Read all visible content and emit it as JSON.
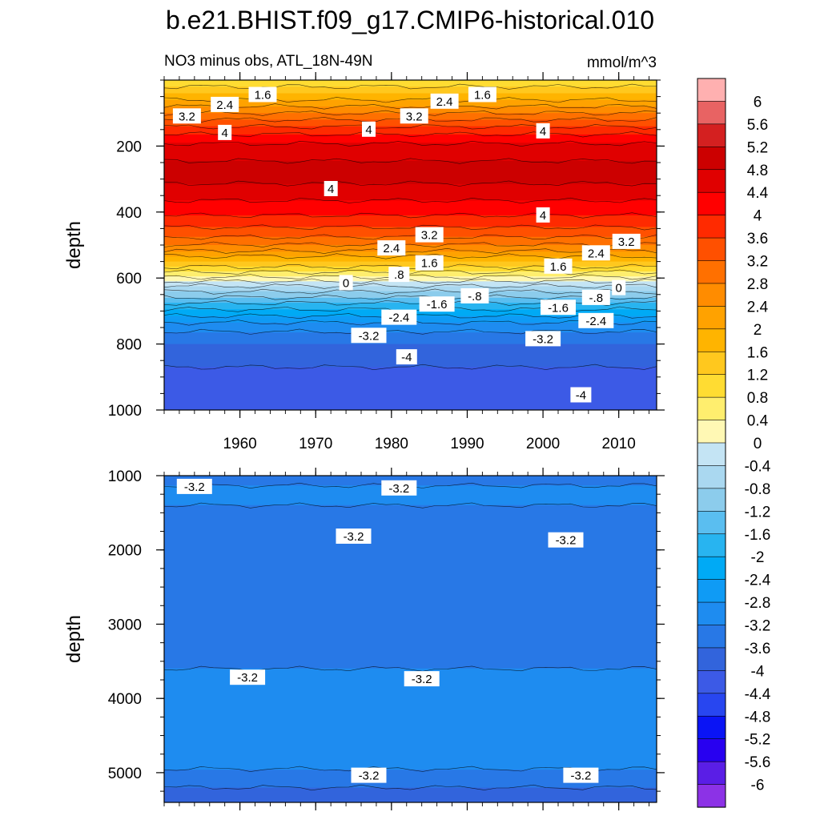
{
  "title": "b.e21.BHIST.f09_g17.CMIP6-historical.010",
  "chart_data": [
    {
      "type": "heatmap",
      "panel": "upper",
      "subtitle_left": "NO3 minus obs, ATL_18N-49N",
      "subtitle_right": "mmol/m^3",
      "ylabel": "depth",
      "xlim": [
        1950,
        2015
      ],
      "ylim": [
        0,
        1000
      ],
      "y_reversed": true,
      "x_ticks": [
        1960,
        1970,
        1980,
        1990,
        2000,
        2010
      ],
      "y_ticks": [
        200,
        400,
        600,
        800,
        1000
      ],
      "profile_depths": [
        0,
        40,
        90,
        130,
        170,
        200,
        260,
        300,
        340,
        390,
        430,
        470,
        510,
        550,
        590,
        620,
        650,
        680,
        710,
        740,
        770,
        800,
        840,
        900,
        1000
      ],
      "profile_values": [
        0.8,
        1.6,
        2.6,
        3.4,
        4.1,
        4.5,
        4.9,
        4.9,
        4.6,
        4.2,
        3.8,
        3.3,
        2.6,
        1.6,
        0.6,
        -0.3,
        -1.0,
        -1.7,
        -2.3,
        -2.9,
        -3.3,
        -3.6,
        -3.9,
        -4.1,
        -4.2
      ],
      "contour_labels": [
        {
          "text": "1.6",
          "x": 1963,
          "y": 45
        },
        {
          "text": "2.4",
          "x": 1958,
          "y": 75
        },
        {
          "text": "3.2",
          "x": 1953,
          "y": 110
        },
        {
          "text": "4",
          "x": 1958,
          "y": 160
        },
        {
          "text": "2.4",
          "x": 1987,
          "y": 65
        },
        {
          "text": "1.6",
          "x": 1992,
          "y": 45
        },
        {
          "text": "3.2",
          "x": 1983,
          "y": 110
        },
        {
          "text": "4",
          "x": 1977,
          "y": 150
        },
        {
          "text": "4",
          "x": 2000,
          "y": 155
        },
        {
          "text": "4",
          "x": 1972,
          "y": 330
        },
        {
          "text": "4",
          "x": 2000,
          "y": 410
        },
        {
          "text": "3.2",
          "x": 1985,
          "y": 470
        },
        {
          "text": "3.2",
          "x": 2011,
          "y": 490
        },
        {
          "text": "2.4",
          "x": 1980,
          "y": 510
        },
        {
          "text": "2.4",
          "x": 2007,
          "y": 525
        },
        {
          "text": "1.6",
          "x": 1985,
          "y": 555
        },
        {
          "text": "1.6",
          "x": 2002,
          "y": 565
        },
        {
          "text": ".8",
          "x": 1981,
          "y": 590
        },
        {
          "text": "0",
          "x": 1974,
          "y": 615
        },
        {
          "text": "0",
          "x": 2010,
          "y": 630
        },
        {
          "text": "-.8",
          "x": 1991,
          "y": 655
        },
        {
          "text": "-.8",
          "x": 2007,
          "y": 660
        },
        {
          "text": "-1.6",
          "x": 1986,
          "y": 680
        },
        {
          "text": "-1.6",
          "x": 2002,
          "y": 690
        },
        {
          "text": "-2.4",
          "x": 1981,
          "y": 720
        },
        {
          "text": "-2.4",
          "x": 2007,
          "y": 730
        },
        {
          "text": "-3.2",
          "x": 1977,
          "y": 775
        },
        {
          "text": "-3.2",
          "x": 2000,
          "y": 785
        },
        {
          "text": "-4",
          "x": 1982,
          "y": 840
        },
        {
          "text": "-4",
          "x": 2005,
          "y": 955
        }
      ]
    },
    {
      "type": "heatmap",
      "panel": "lower",
      "ylabel": "depth",
      "xlim": [
        1950,
        2015
      ],
      "ylim": [
        1000,
        5400
      ],
      "y_reversed": true,
      "y_ticks": [
        1000,
        2000,
        3000,
        4000,
        5000
      ],
      "profile_depths": [
        1000,
        1200,
        1600,
        2000,
        3300,
        3700,
        4900,
        5100,
        5400
      ],
      "profile_values": [
        -3.4,
        -3.1,
        -3.3,
        -3.5,
        -3.5,
        -3.1,
        -3.1,
        -3.5,
        -3.8
      ],
      "contour_labels": [
        {
          "text": "-3.2",
          "x": 1954,
          "y": 1150
        },
        {
          "text": "-3.2",
          "x": 1981,
          "y": 1170
        },
        {
          "text": "-3.2",
          "x": 1975,
          "y": 1820
        },
        {
          "text": "-3.2",
          "x": 2003,
          "y": 1870
        },
        {
          "text": "-3.2",
          "x": 1961,
          "y": 3720
        },
        {
          "text": "-3.2",
          "x": 1984,
          "y": 3740
        },
        {
          "text": "-3.2",
          "x": 1977,
          "y": 5040
        },
        {
          "text": "-3.2",
          "x": 2005,
          "y": 5040
        }
      ]
    }
  ],
  "colorbar": {
    "labels": [
      "6",
      "5.6",
      "5.2",
      "4.8",
      "4.4",
      "4",
      "3.6",
      "3.2",
      "2.8",
      "2.4",
      "2",
      "1.6",
      "1.2",
      "0.8",
      "0.4",
      "0",
      "-0.4",
      "-0.8",
      "-1.2",
      "-1.6",
      "-2",
      "-2.4",
      "-2.8",
      "-3.2",
      "-3.6",
      "-4",
      "-4.4",
      "-4.8",
      "-5.2",
      "-5.6",
      "-6"
    ],
    "colors": [
      "#ffb0b0",
      "#e86363",
      "#d42020",
      "#cc0000",
      "#e00000",
      "#ff0000",
      "#ff2a00",
      "#ff5000",
      "#ff7000",
      "#ff8c00",
      "#ffa200",
      "#ffb400",
      "#ffc81e",
      "#ffdc32",
      "#ffee6e",
      "#fff8b4",
      "#c4e4f4",
      "#aad8f0",
      "#8cccec",
      "#5abef0",
      "#28b4f0",
      "#00aaf5",
      "#0f9bf5",
      "#1e8cf0",
      "#2878e6",
      "#3264dc",
      "#3c5ae6",
      "#2846f0",
      "#0a14f5",
      "#2800f0",
      "#5a1ee6",
      "#8c32e6"
    ]
  }
}
